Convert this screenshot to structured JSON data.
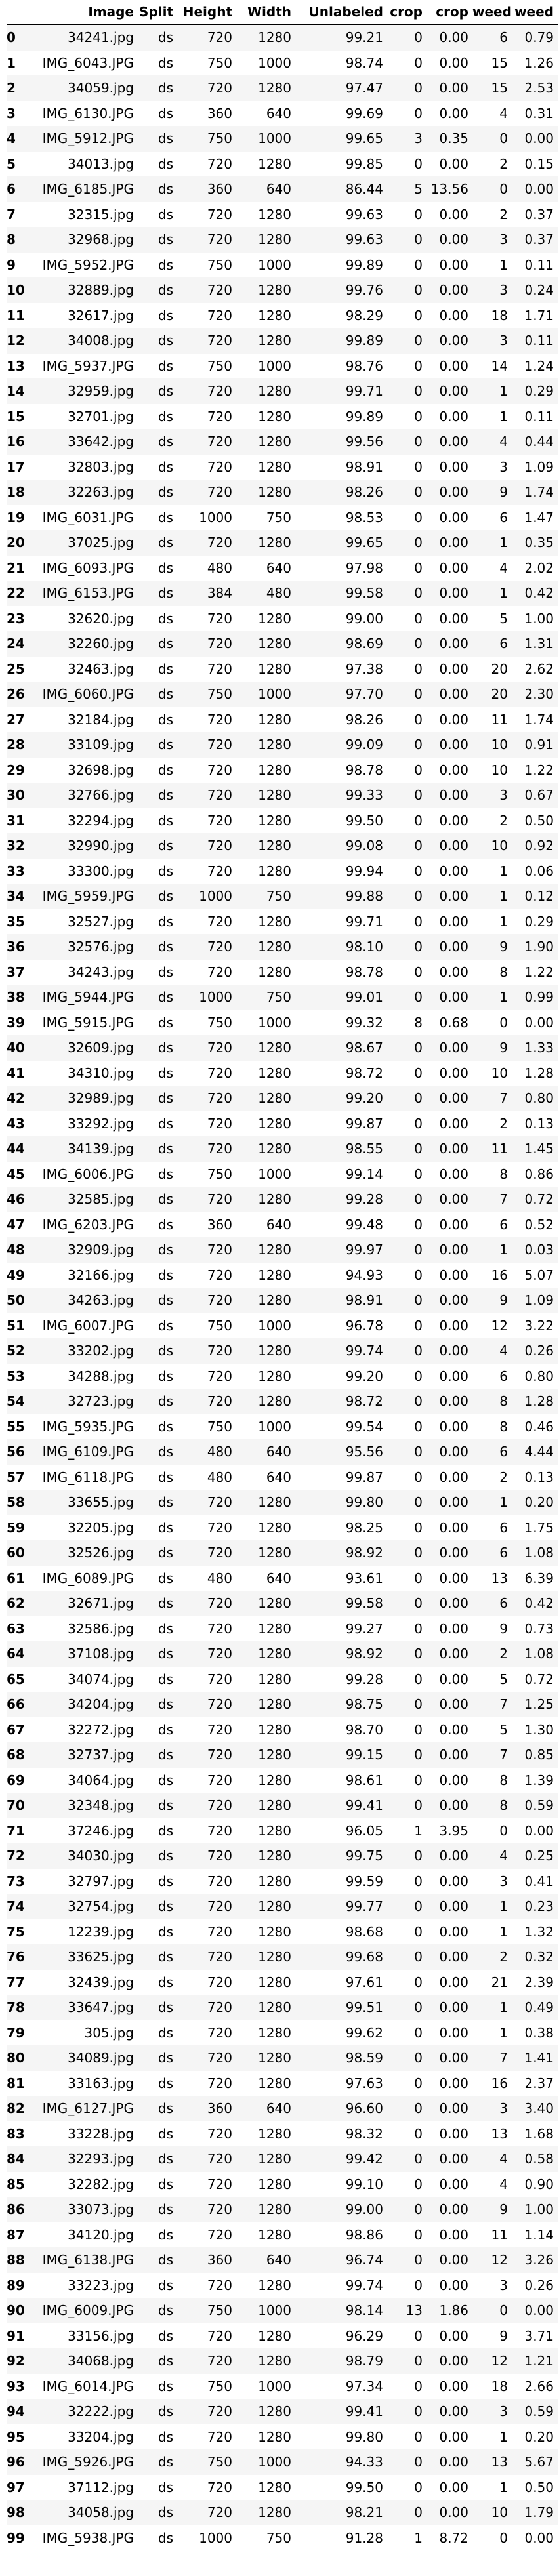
{
  "table": {
    "columns": [
      "",
      "Image",
      "Split",
      "Height",
      "Width",
      "Unlabeled",
      "crop",
      "crop",
      "weed",
      "weed"
    ],
    "rows": [
      [
        "0",
        "34241.jpg",
        "ds",
        "720",
        "1280",
        "99.21",
        "0",
        "0.00",
        "6",
        "0.79"
      ],
      [
        "1",
        "IMG_6043.JPG",
        "ds",
        "750",
        "1000",
        "98.74",
        "0",
        "0.00",
        "15",
        "1.26"
      ],
      [
        "2",
        "34059.jpg",
        "ds",
        "720",
        "1280",
        "97.47",
        "0",
        "0.00",
        "15",
        "2.53"
      ],
      [
        "3",
        "IMG_6130.JPG",
        "ds",
        "360",
        "640",
        "99.69",
        "0",
        "0.00",
        "4",
        "0.31"
      ],
      [
        "4",
        "IMG_5912.JPG",
        "ds",
        "750",
        "1000",
        "99.65",
        "3",
        "0.35",
        "0",
        "0.00"
      ],
      [
        "5",
        "34013.jpg",
        "ds",
        "720",
        "1280",
        "99.85",
        "0",
        "0.00",
        "2",
        "0.15"
      ],
      [
        "6",
        "IMG_6185.JPG",
        "ds",
        "360",
        "640",
        "86.44",
        "5",
        "13.56",
        "0",
        "0.00"
      ],
      [
        "7",
        "32315.jpg",
        "ds",
        "720",
        "1280",
        "99.63",
        "0",
        "0.00",
        "2",
        "0.37"
      ],
      [
        "8",
        "32968.jpg",
        "ds",
        "720",
        "1280",
        "99.63",
        "0",
        "0.00",
        "3",
        "0.37"
      ],
      [
        "9",
        "IMG_5952.JPG",
        "ds",
        "750",
        "1000",
        "99.89",
        "0",
        "0.00",
        "1",
        "0.11"
      ],
      [
        "10",
        "32889.jpg",
        "ds",
        "720",
        "1280",
        "99.76",
        "0",
        "0.00",
        "3",
        "0.24"
      ],
      [
        "11",
        "32617.jpg",
        "ds",
        "720",
        "1280",
        "98.29",
        "0",
        "0.00",
        "18",
        "1.71"
      ],
      [
        "12",
        "34008.jpg",
        "ds",
        "720",
        "1280",
        "99.89",
        "0",
        "0.00",
        "3",
        "0.11"
      ],
      [
        "13",
        "IMG_5937.JPG",
        "ds",
        "750",
        "1000",
        "98.76",
        "0",
        "0.00",
        "14",
        "1.24"
      ],
      [
        "14",
        "32959.jpg",
        "ds",
        "720",
        "1280",
        "99.71",
        "0",
        "0.00",
        "1",
        "0.29"
      ],
      [
        "15",
        "32701.jpg",
        "ds",
        "720",
        "1280",
        "99.89",
        "0",
        "0.00",
        "1",
        "0.11"
      ],
      [
        "16",
        "33642.jpg",
        "ds",
        "720",
        "1280",
        "99.56",
        "0",
        "0.00",
        "4",
        "0.44"
      ],
      [
        "17",
        "32803.jpg",
        "ds",
        "720",
        "1280",
        "98.91",
        "0",
        "0.00",
        "3",
        "1.09"
      ],
      [
        "18",
        "32263.jpg",
        "ds",
        "720",
        "1280",
        "98.26",
        "0",
        "0.00",
        "9",
        "1.74"
      ],
      [
        "19",
        "IMG_6031.JPG",
        "ds",
        "1000",
        "750",
        "98.53",
        "0",
        "0.00",
        "6",
        "1.47"
      ],
      [
        "20",
        "37025.jpg",
        "ds",
        "720",
        "1280",
        "99.65",
        "0",
        "0.00",
        "1",
        "0.35"
      ],
      [
        "21",
        "IMG_6093.JPG",
        "ds",
        "480",
        "640",
        "97.98",
        "0",
        "0.00",
        "4",
        "2.02"
      ],
      [
        "22",
        "IMG_6153.JPG",
        "ds",
        "384",
        "480",
        "99.58",
        "0",
        "0.00",
        "1",
        "0.42"
      ],
      [
        "23",
        "32620.jpg",
        "ds",
        "720",
        "1280",
        "99.00",
        "0",
        "0.00",
        "5",
        "1.00"
      ],
      [
        "24",
        "32260.jpg",
        "ds",
        "720",
        "1280",
        "98.69",
        "0",
        "0.00",
        "6",
        "1.31"
      ],
      [
        "25",
        "32463.jpg",
        "ds",
        "720",
        "1280",
        "97.38",
        "0",
        "0.00",
        "20",
        "2.62"
      ],
      [
        "26",
        "IMG_6060.JPG",
        "ds",
        "750",
        "1000",
        "97.70",
        "0",
        "0.00",
        "20",
        "2.30"
      ],
      [
        "27",
        "32184.jpg",
        "ds",
        "720",
        "1280",
        "98.26",
        "0",
        "0.00",
        "11",
        "1.74"
      ],
      [
        "28",
        "33109.jpg",
        "ds",
        "720",
        "1280",
        "99.09",
        "0",
        "0.00",
        "10",
        "0.91"
      ],
      [
        "29",
        "32698.jpg",
        "ds",
        "720",
        "1280",
        "98.78",
        "0",
        "0.00",
        "10",
        "1.22"
      ],
      [
        "30",
        "32766.jpg",
        "ds",
        "720",
        "1280",
        "99.33",
        "0",
        "0.00",
        "3",
        "0.67"
      ],
      [
        "31",
        "32294.jpg",
        "ds",
        "720",
        "1280",
        "99.50",
        "0",
        "0.00",
        "2",
        "0.50"
      ],
      [
        "32",
        "32990.jpg",
        "ds",
        "720",
        "1280",
        "99.08",
        "0",
        "0.00",
        "10",
        "0.92"
      ],
      [
        "33",
        "33300.jpg",
        "ds",
        "720",
        "1280",
        "99.94",
        "0",
        "0.00",
        "1",
        "0.06"
      ],
      [
        "34",
        "IMG_5959.JPG",
        "ds",
        "1000",
        "750",
        "99.88",
        "0",
        "0.00",
        "1",
        "0.12"
      ],
      [
        "35",
        "32527.jpg",
        "ds",
        "720",
        "1280",
        "99.71",
        "0",
        "0.00",
        "1",
        "0.29"
      ],
      [
        "36",
        "32576.jpg",
        "ds",
        "720",
        "1280",
        "98.10",
        "0",
        "0.00",
        "9",
        "1.90"
      ],
      [
        "37",
        "34243.jpg",
        "ds",
        "720",
        "1280",
        "98.78",
        "0",
        "0.00",
        "8",
        "1.22"
      ],
      [
        "38",
        "IMG_5944.JPG",
        "ds",
        "1000",
        "750",
        "99.01",
        "0",
        "0.00",
        "1",
        "0.99"
      ],
      [
        "39",
        "IMG_5915.JPG",
        "ds",
        "750",
        "1000",
        "99.32",
        "8",
        "0.68",
        "0",
        "0.00"
      ],
      [
        "40",
        "32609.jpg",
        "ds",
        "720",
        "1280",
        "98.67",
        "0",
        "0.00",
        "9",
        "1.33"
      ],
      [
        "41",
        "34310.jpg",
        "ds",
        "720",
        "1280",
        "98.72",
        "0",
        "0.00",
        "10",
        "1.28"
      ],
      [
        "42",
        "32989.jpg",
        "ds",
        "720",
        "1280",
        "99.20",
        "0",
        "0.00",
        "7",
        "0.80"
      ],
      [
        "43",
        "33292.jpg",
        "ds",
        "720",
        "1280",
        "99.87",
        "0",
        "0.00",
        "2",
        "0.13"
      ],
      [
        "44",
        "34139.jpg",
        "ds",
        "720",
        "1280",
        "98.55",
        "0",
        "0.00",
        "11",
        "1.45"
      ],
      [
        "45",
        "IMG_6006.JPG",
        "ds",
        "750",
        "1000",
        "99.14",
        "0",
        "0.00",
        "8",
        "0.86"
      ],
      [
        "46",
        "32585.jpg",
        "ds",
        "720",
        "1280",
        "99.28",
        "0",
        "0.00",
        "7",
        "0.72"
      ],
      [
        "47",
        "IMG_6203.JPG",
        "ds",
        "360",
        "640",
        "99.48",
        "0",
        "0.00",
        "6",
        "0.52"
      ],
      [
        "48",
        "32909.jpg",
        "ds",
        "720",
        "1280",
        "99.97",
        "0",
        "0.00",
        "1",
        "0.03"
      ],
      [
        "49",
        "32166.jpg",
        "ds",
        "720",
        "1280",
        "94.93",
        "0",
        "0.00",
        "16",
        "5.07"
      ],
      [
        "50",
        "34263.jpg",
        "ds",
        "720",
        "1280",
        "98.91",
        "0",
        "0.00",
        "9",
        "1.09"
      ],
      [
        "51",
        "IMG_6007.JPG",
        "ds",
        "750",
        "1000",
        "96.78",
        "0",
        "0.00",
        "12",
        "3.22"
      ],
      [
        "52",
        "33202.jpg",
        "ds",
        "720",
        "1280",
        "99.74",
        "0",
        "0.00",
        "4",
        "0.26"
      ],
      [
        "53",
        "34288.jpg",
        "ds",
        "720",
        "1280",
        "99.20",
        "0",
        "0.00",
        "6",
        "0.80"
      ],
      [
        "54",
        "32723.jpg",
        "ds",
        "720",
        "1280",
        "98.72",
        "0",
        "0.00",
        "8",
        "1.28"
      ],
      [
        "55",
        "IMG_5935.JPG",
        "ds",
        "750",
        "1000",
        "99.54",
        "0",
        "0.00",
        "8",
        "0.46"
      ],
      [
        "56",
        "IMG_6109.JPG",
        "ds",
        "480",
        "640",
        "95.56",
        "0",
        "0.00",
        "6",
        "4.44"
      ],
      [
        "57",
        "IMG_6118.JPG",
        "ds",
        "480",
        "640",
        "99.87",
        "0",
        "0.00",
        "2",
        "0.13"
      ],
      [
        "58",
        "33655.jpg",
        "ds",
        "720",
        "1280",
        "99.80",
        "0",
        "0.00",
        "1",
        "0.20"
      ],
      [
        "59",
        "32205.jpg",
        "ds",
        "720",
        "1280",
        "98.25",
        "0",
        "0.00",
        "6",
        "1.75"
      ],
      [
        "60",
        "32526.jpg",
        "ds",
        "720",
        "1280",
        "98.92",
        "0",
        "0.00",
        "6",
        "1.08"
      ],
      [
        "61",
        "IMG_6089.JPG",
        "ds",
        "480",
        "640",
        "93.61",
        "0",
        "0.00",
        "13",
        "6.39"
      ],
      [
        "62",
        "32671.jpg",
        "ds",
        "720",
        "1280",
        "99.58",
        "0",
        "0.00",
        "6",
        "0.42"
      ],
      [
        "63",
        "32586.jpg",
        "ds",
        "720",
        "1280",
        "99.27",
        "0",
        "0.00",
        "9",
        "0.73"
      ],
      [
        "64",
        "37108.jpg",
        "ds",
        "720",
        "1280",
        "98.92",
        "0",
        "0.00",
        "2",
        "1.08"
      ],
      [
        "65",
        "34074.jpg",
        "ds",
        "720",
        "1280",
        "99.28",
        "0",
        "0.00",
        "5",
        "0.72"
      ],
      [
        "66",
        "34204.jpg",
        "ds",
        "720",
        "1280",
        "98.75",
        "0",
        "0.00",
        "7",
        "1.25"
      ],
      [
        "67",
        "32272.jpg",
        "ds",
        "720",
        "1280",
        "98.70",
        "0",
        "0.00",
        "5",
        "1.30"
      ],
      [
        "68",
        "32737.jpg",
        "ds",
        "720",
        "1280",
        "99.15",
        "0",
        "0.00",
        "7",
        "0.85"
      ],
      [
        "69",
        "34064.jpg",
        "ds",
        "720",
        "1280",
        "98.61",
        "0",
        "0.00",
        "8",
        "1.39"
      ],
      [
        "70",
        "32348.jpg",
        "ds",
        "720",
        "1280",
        "99.41",
        "0",
        "0.00",
        "8",
        "0.59"
      ],
      [
        "71",
        "37246.jpg",
        "ds",
        "720",
        "1280",
        "96.05",
        "1",
        "3.95",
        "0",
        "0.00"
      ],
      [
        "72",
        "34030.jpg",
        "ds",
        "720",
        "1280",
        "99.75",
        "0",
        "0.00",
        "4",
        "0.25"
      ],
      [
        "73",
        "32797.jpg",
        "ds",
        "720",
        "1280",
        "99.59",
        "0",
        "0.00",
        "3",
        "0.41"
      ],
      [
        "74",
        "32754.jpg",
        "ds",
        "720",
        "1280",
        "99.77",
        "0",
        "0.00",
        "1",
        "0.23"
      ],
      [
        "75",
        "12239.jpg",
        "ds",
        "720",
        "1280",
        "98.68",
        "0",
        "0.00",
        "1",
        "1.32"
      ],
      [
        "76",
        "33625.jpg",
        "ds",
        "720",
        "1280",
        "99.68",
        "0",
        "0.00",
        "2",
        "0.32"
      ],
      [
        "77",
        "32439.jpg",
        "ds",
        "720",
        "1280",
        "97.61",
        "0",
        "0.00",
        "21",
        "2.39"
      ],
      [
        "78",
        "33647.jpg",
        "ds",
        "720",
        "1280",
        "99.51",
        "0",
        "0.00",
        "1",
        "0.49"
      ],
      [
        "79",
        "305.jpg",
        "ds",
        "720",
        "1280",
        "99.62",
        "0",
        "0.00",
        "1",
        "0.38"
      ],
      [
        "80",
        "34089.jpg",
        "ds",
        "720",
        "1280",
        "98.59",
        "0",
        "0.00",
        "7",
        "1.41"
      ],
      [
        "81",
        "33163.jpg",
        "ds",
        "720",
        "1280",
        "97.63",
        "0",
        "0.00",
        "16",
        "2.37"
      ],
      [
        "82",
        "IMG_6127.JPG",
        "ds",
        "360",
        "640",
        "96.60",
        "0",
        "0.00",
        "3",
        "3.40"
      ],
      [
        "83",
        "33228.jpg",
        "ds",
        "720",
        "1280",
        "98.32",
        "0",
        "0.00",
        "13",
        "1.68"
      ],
      [
        "84",
        "32293.jpg",
        "ds",
        "720",
        "1280",
        "99.42",
        "0",
        "0.00",
        "4",
        "0.58"
      ],
      [
        "85",
        "32282.jpg",
        "ds",
        "720",
        "1280",
        "99.10",
        "0",
        "0.00",
        "4",
        "0.90"
      ],
      [
        "86",
        "33073.jpg",
        "ds",
        "720",
        "1280",
        "99.00",
        "0",
        "0.00",
        "9",
        "1.00"
      ],
      [
        "87",
        "34120.jpg",
        "ds",
        "720",
        "1280",
        "98.86",
        "0",
        "0.00",
        "11",
        "1.14"
      ],
      [
        "88",
        "IMG_6138.JPG",
        "ds",
        "360",
        "640",
        "96.74",
        "0",
        "0.00",
        "12",
        "3.26"
      ],
      [
        "89",
        "33223.jpg",
        "ds",
        "720",
        "1280",
        "99.74",
        "0",
        "0.00",
        "3",
        "0.26"
      ],
      [
        "90",
        "IMG_6009.JPG",
        "ds",
        "750",
        "1000",
        "98.14",
        "13",
        "1.86",
        "0",
        "0.00"
      ],
      [
        "91",
        "33156.jpg",
        "ds",
        "720",
        "1280",
        "96.29",
        "0",
        "0.00",
        "9",
        "3.71"
      ],
      [
        "92",
        "34068.jpg",
        "ds",
        "720",
        "1280",
        "98.79",
        "0",
        "0.00",
        "12",
        "1.21"
      ],
      [
        "93",
        "IMG_6014.JPG",
        "ds",
        "750",
        "1000",
        "97.34",
        "0",
        "0.00",
        "18",
        "2.66"
      ],
      [
        "94",
        "32222.jpg",
        "ds",
        "720",
        "1280",
        "99.41",
        "0",
        "0.00",
        "3",
        "0.59"
      ],
      [
        "95",
        "33204.jpg",
        "ds",
        "720",
        "1280",
        "99.80",
        "0",
        "0.00",
        "1",
        "0.20"
      ],
      [
        "96",
        "IMG_5926.JPG",
        "ds",
        "750",
        "1000",
        "94.33",
        "0",
        "0.00",
        "13",
        "5.67"
      ],
      [
        "97",
        "37112.jpg",
        "ds",
        "720",
        "1280",
        "99.50",
        "0",
        "0.00",
        "1",
        "0.50"
      ],
      [
        "98",
        "34058.jpg",
        "ds",
        "720",
        "1280",
        "98.21",
        "0",
        "0.00",
        "10",
        "1.79"
      ],
      [
        "99",
        "IMG_5938.JPG",
        "ds",
        "1000",
        "750",
        "91.28",
        "1",
        "8.72",
        "0",
        "0.00"
      ]
    ]
  }
}
